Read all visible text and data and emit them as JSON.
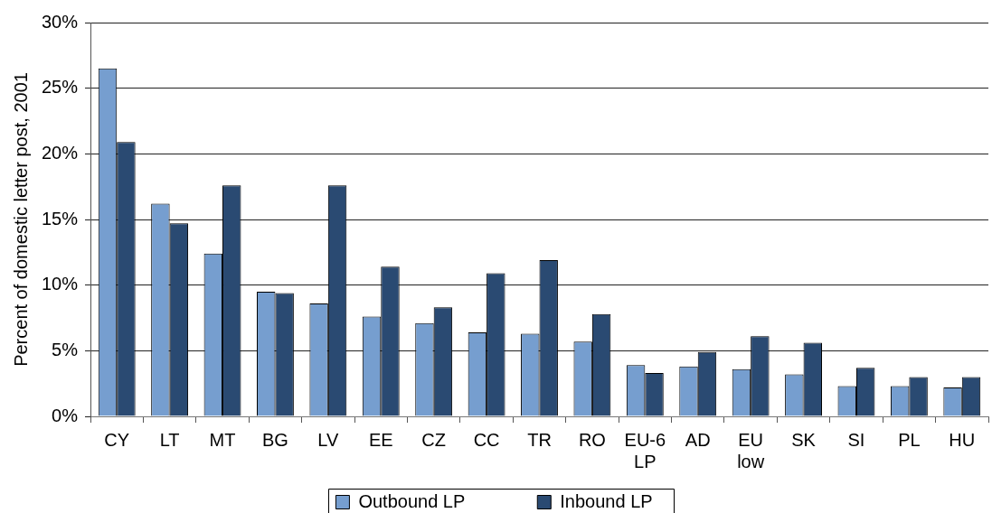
{
  "chart_data": {
    "type": "bar",
    "ylabel": "Percent of domestic letter post, 2001",
    "categories": [
      "CY",
      "LT",
      "MT",
      "BG",
      "LV",
      "EE",
      "CZ",
      "CC",
      "TR",
      "RO",
      "EU-6 LP",
      "AD",
      "EU low",
      "SK",
      "SI",
      "PL",
      "HU"
    ],
    "series": [
      {
        "name": "Outbound LP",
        "color": "#769ecf",
        "values": [
          26.5,
          16.2,
          12.4,
          9.5,
          8.6,
          7.6,
          7.1,
          6.4,
          6.3,
          5.7,
          3.9,
          3.8,
          3.6,
          3.2,
          2.3,
          2.3,
          2.2
        ]
      },
      {
        "name": "Inbound LP",
        "color": "#2a4a72",
        "values": [
          20.9,
          14.7,
          17.6,
          9.4,
          17.6,
          11.4,
          8.3,
          10.9,
          11.9,
          7.8,
          3.3,
          4.9,
          6.1,
          5.6,
          3.7,
          3.0,
          3.0
        ]
      }
    ],
    "ylim": [
      0,
      30
    ],
    "yticks": [
      {
        "value": 0,
        "label": "0%"
      },
      {
        "value": 5,
        "label": "5%"
      },
      {
        "value": 10,
        "label": "10%"
      },
      {
        "value": 15,
        "label": "15%"
      },
      {
        "value": 20,
        "label": "20%"
      },
      {
        "value": 25,
        "label": "25%"
      },
      {
        "value": 30,
        "label": "30%"
      }
    ],
    "grid": "y",
    "legend": "bottom"
  }
}
